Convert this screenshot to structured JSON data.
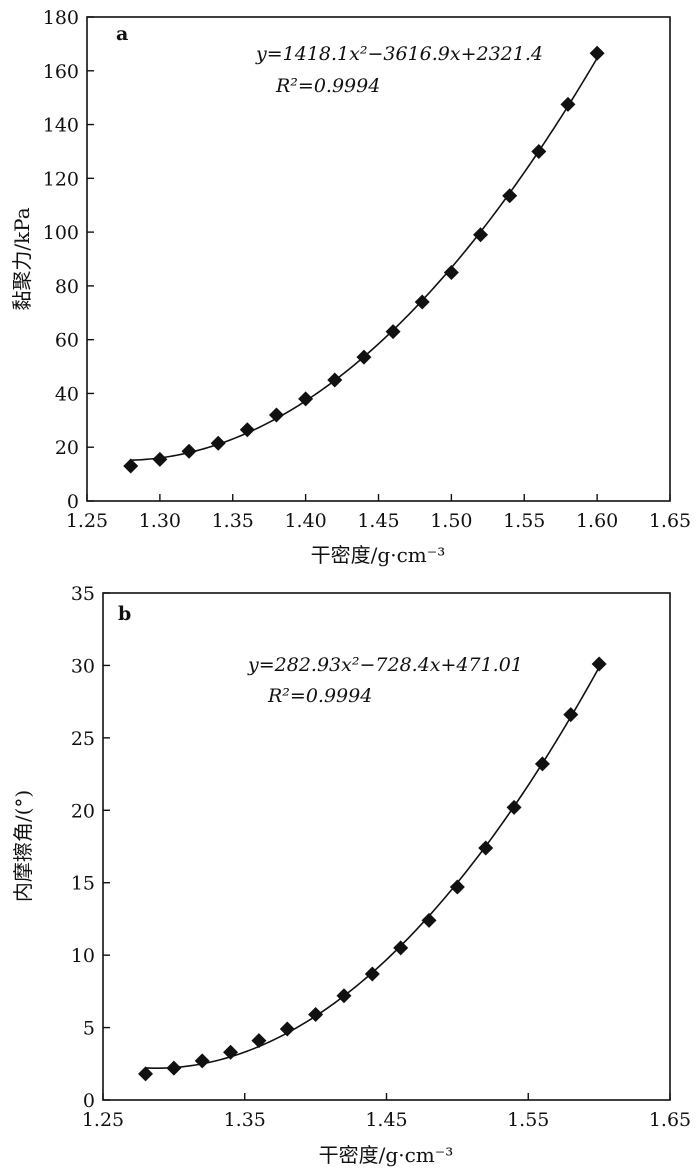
{
  "chart_data": [
    {
      "panel": "a",
      "type": "scatter",
      "xlabel": "干密度/g·cm⁻³",
      "ylabel": "黏聚力/kPa",
      "xlim": [
        1.25,
        1.65
      ],
      "ylim": [
        0,
        180
      ],
      "xticks": [
        "1.25",
        "1.30",
        "1.35",
        "1.40",
        "1.45",
        "1.50",
        "1.55",
        "1.60",
        "1.65"
      ],
      "yticks": [
        "0",
        "20",
        "40",
        "60",
        "80",
        "100",
        "120",
        "140",
        "160",
        "180"
      ],
      "grid": false,
      "marker": "diamond",
      "x": [
        1.28,
        1.3,
        1.32,
        1.34,
        1.36,
        1.38,
        1.4,
        1.42,
        1.44,
        1.46,
        1.48,
        1.5,
        1.52,
        1.54,
        1.56,
        1.58,
        1.6
      ],
      "y": [
        13,
        15.5,
        18.5,
        21.5,
        26.5,
        32,
        38,
        45,
        53.5,
        63,
        74,
        85,
        99,
        113.5,
        130,
        147.5,
        166.5
      ],
      "fit": {
        "a": 1418.1,
        "b": -3616.9,
        "c": 2321.4
      },
      "equation": "y=1418.1x²−3616.9x+2321.4",
      "r2_text": "R²=0.9994"
    },
    {
      "panel": "b",
      "type": "scatter",
      "xlabel": "干密度/g·cm⁻³",
      "ylabel": "内摩擦角/(°)",
      "xlim": [
        1.25,
        1.65
      ],
      "ylim": [
        0,
        35
      ],
      "xticks": [
        "1.25",
        "1.35",
        "1.45",
        "1.55",
        "1.65"
      ],
      "yticks": [
        "0",
        "5",
        "10",
        "15",
        "20",
        "25",
        "30",
        "35"
      ],
      "grid": false,
      "marker": "diamond",
      "x": [
        1.28,
        1.3,
        1.32,
        1.34,
        1.36,
        1.38,
        1.4,
        1.42,
        1.44,
        1.46,
        1.48,
        1.5,
        1.52,
        1.54,
        1.56,
        1.58,
        1.6
      ],
      "y": [
        1.8,
        2.2,
        2.7,
        3.3,
        4.1,
        4.9,
        5.9,
        7.2,
        8.7,
        10.5,
        12.4,
        14.7,
        17.4,
        20.2,
        23.2,
        26.6,
        30.1
      ],
      "fit": {
        "a": 282.93,
        "b": -728.4,
        "c": 471.01
      },
      "equation": "y=282.93x²−728.4x+471.01",
      "r2_text": "R²=0.9994"
    }
  ]
}
